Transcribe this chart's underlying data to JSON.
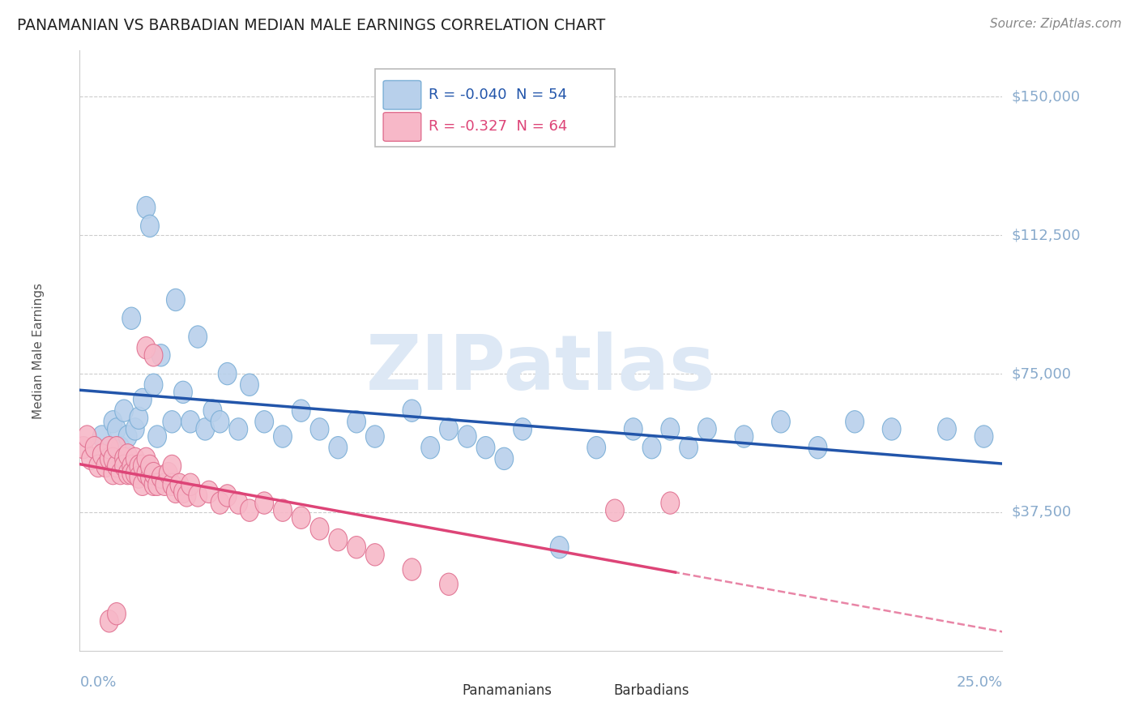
{
  "title": "PANAMANIAN VS BARBADIAN MEDIAN MALE EARNINGS CORRELATION CHART",
  "source": "Source: ZipAtlas.com",
  "ylabel": "Median Male Earnings",
  "xlim": [
    0.0,
    0.25
  ],
  "ylim": [
    0,
    162500
  ],
  "ytick_vals": [
    37500,
    75000,
    112500,
    150000
  ],
  "ytick_labels": [
    "$37,500",
    "$75,000",
    "$112,500",
    "$150,000"
  ],
  "blue_R": -0.04,
  "blue_N": 54,
  "pink_R": -0.327,
  "pink_N": 64,
  "blue_face": "#b8d0eb",
  "blue_edge": "#7aaed6",
  "blue_line": "#2255aa",
  "pink_face": "#f7b8c8",
  "pink_edge": "#e07090",
  "pink_line": "#dd4477",
  "title_color": "#222222",
  "source_color": "#888888",
  "axis_color": "#88aacc",
  "ylabel_color": "#555555",
  "grid_color": "#cccccc",
  "watermark": "ZIPatlas",
  "watermark_color": "#dde8f5",
  "legend_R_blue_color": "#2255aa",
  "legend_R_pink_color": "#dd4477",
  "blue_x": [
    0.006,
    0.009,
    0.01,
    0.011,
    0.012,
    0.013,
    0.014,
    0.015,
    0.016,
    0.017,
    0.018,
    0.019,
    0.02,
    0.021,
    0.022,
    0.025,
    0.026,
    0.028,
    0.03,
    0.032,
    0.034,
    0.036,
    0.038,
    0.04,
    0.043,
    0.046,
    0.05,
    0.055,
    0.06,
    0.065,
    0.07,
    0.075,
    0.08,
    0.09,
    0.095,
    0.1,
    0.105,
    0.11,
    0.115,
    0.12,
    0.13,
    0.14,
    0.15,
    0.155,
    0.16,
    0.165,
    0.17,
    0.18,
    0.19,
    0.2,
    0.21,
    0.22,
    0.235,
    0.245
  ],
  "blue_y": [
    58000,
    62000,
    60000,
    55000,
    65000,
    58000,
    90000,
    60000,
    63000,
    68000,
    120000,
    115000,
    72000,
    58000,
    80000,
    62000,
    95000,
    70000,
    62000,
    85000,
    60000,
    65000,
    62000,
    75000,
    60000,
    72000,
    62000,
    58000,
    65000,
    60000,
    55000,
    62000,
    58000,
    65000,
    55000,
    60000,
    58000,
    55000,
    52000,
    60000,
    28000,
    55000,
    60000,
    55000,
    60000,
    55000,
    60000,
    58000,
    62000,
    55000,
    62000,
    60000,
    60000,
    58000
  ],
  "pink_x": [
    0.001,
    0.002,
    0.003,
    0.004,
    0.005,
    0.006,
    0.007,
    0.008,
    0.008,
    0.009,
    0.009,
    0.01,
    0.01,
    0.011,
    0.012,
    0.012,
    0.013,
    0.013,
    0.014,
    0.014,
    0.015,
    0.015,
    0.016,
    0.016,
    0.017,
    0.017,
    0.018,
    0.018,
    0.019,
    0.019,
    0.02,
    0.02,
    0.021,
    0.022,
    0.023,
    0.024,
    0.025,
    0.025,
    0.026,
    0.027,
    0.028,
    0.029,
    0.03,
    0.032,
    0.035,
    0.038,
    0.04,
    0.043,
    0.046,
    0.05,
    0.055,
    0.06,
    0.065,
    0.07,
    0.075,
    0.08,
    0.09,
    0.1,
    0.018,
    0.02,
    0.008,
    0.01,
    0.145,
    0.16
  ],
  "pink_y": [
    55000,
    58000,
    52000,
    55000,
    50000,
    53000,
    50000,
    52000,
    55000,
    48000,
    52000,
    50000,
    55000,
    48000,
    52000,
    50000,
    48000,
    53000,
    50000,
    48000,
    52000,
    48000,
    50000,
    47000,
    45000,
    50000,
    48000,
    52000,
    47000,
    50000,
    45000,
    48000,
    45000,
    47000,
    45000,
    48000,
    45000,
    50000,
    43000,
    45000,
    43000,
    42000,
    45000,
    42000,
    43000,
    40000,
    42000,
    40000,
    38000,
    40000,
    38000,
    36000,
    33000,
    30000,
    28000,
    26000,
    22000,
    18000,
    82000,
    80000,
    8000,
    10000,
    38000,
    40000
  ]
}
